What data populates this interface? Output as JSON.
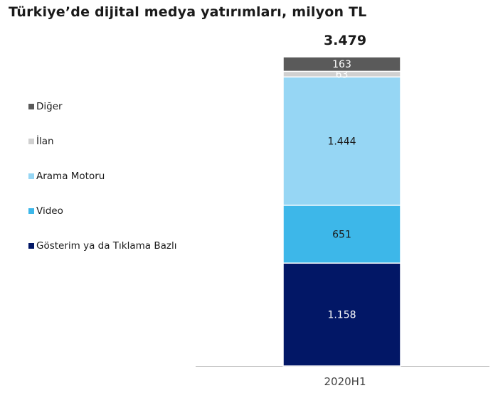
{
  "title": "Türkiye’de dijital medya yatırımları, milyon TL",
  "chart_data": {
    "type": "bar",
    "stacked": true,
    "title": "Türkiye’de dijital medya yatırımları, milyon TL",
    "categories": [
      "2020H1"
    ],
    "total_label": "3.479",
    "total": 3479,
    "series": [
      {
        "name": "Gösterim ya da Tıklama Bazlı",
        "values": [
          1158
        ],
        "label": "1.158",
        "color": "#021766",
        "text_color": "#ffffff"
      },
      {
        "name": "Video",
        "values": [
          651
        ],
        "label": "651",
        "color": "#3db7e9",
        "text_color": "#1a1a1a"
      },
      {
        "name": "Arama Motoru",
        "values": [
          1444
        ],
        "label": "1.444",
        "color": "#96d6f4",
        "text_color": "#1a1a1a"
      },
      {
        "name": "İlan",
        "values": [
          63
        ],
        "label": "63",
        "color": "#d0d0d0",
        "text_color": "#ffffff"
      },
      {
        "name": "Diğer",
        "values": [
          163
        ],
        "label": "163",
        "color": "#5a5a5a",
        "text_color": "#ffffff"
      }
    ],
    "legend_order": [
      "Diğer",
      "İlan",
      "Arama Motoru",
      "Video",
      "Gösterim ya da Tıklama Bazlı"
    ],
    "legend_position": "left",
    "grid": false
  }
}
